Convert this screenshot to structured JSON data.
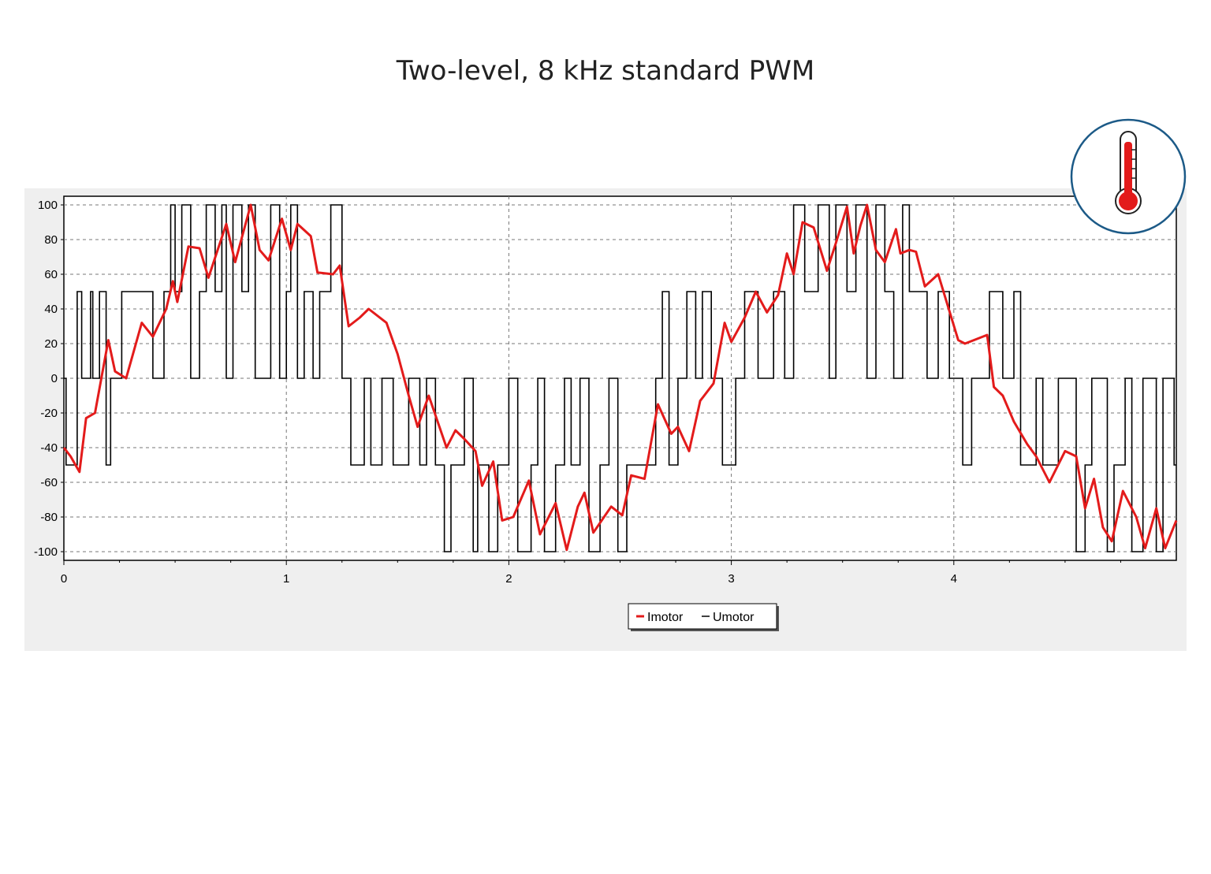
{
  "title": "Two-level, 8 kHz standard PWM",
  "thermometer": {
    "icon": "thermometer-icon",
    "ring_color": "#1c5a87",
    "mercury_color": "#e31b1b"
  },
  "chart_data": {
    "type": "line",
    "title": "Two-level, 8 kHz standard PWM",
    "xlabel": "",
    "ylabel": "",
    "xlim": [
      0,
      5
    ],
    "ylim": [
      -105,
      105
    ],
    "x_ticks": [
      0,
      1,
      2,
      3,
      4
    ],
    "x_tick_labels": [
      "0",
      "1",
      "2",
      "3",
      "4"
    ],
    "y_ticks": [
      100,
      80,
      60,
      40,
      20,
      0,
      -20,
      -40,
      -60,
      -80,
      -100
    ],
    "y_tick_labels": [
      "100",
      "80",
      "60",
      "40",
      "20",
      "0",
      "-20",
      "-40",
      "-60",
      "-80",
      "-100"
    ],
    "grid": true,
    "legend": "bottom-center",
    "series": [
      {
        "name": "Imotor",
        "color": "#e31b1b",
        "style": "line",
        "x": [
          0,
          0.03,
          0.07,
          0.1,
          0.14,
          0.2,
          0.23,
          0.28,
          0.35,
          0.4,
          0.46,
          0.49,
          0.51,
          0.56,
          0.61,
          0.65,
          0.73,
          0.77,
          0.84,
          0.88,
          0.92,
          0.98,
          1.02,
          1.05,
          1.11,
          1.14,
          1.21,
          1.24,
          1.28,
          1.33,
          1.37,
          1.45,
          1.5,
          1.55,
          1.59,
          1.64,
          1.72,
          1.76,
          1.8,
          1.85,
          1.88,
          1.93,
          1.97,
          2.02,
          2.09,
          2.14,
          2.21,
          2.26,
          2.31,
          2.34,
          2.38,
          2.46,
          2.51,
          2.55,
          2.61,
          2.67,
          2.73,
          2.76,
          2.81,
          2.86,
          2.92,
          2.97,
          3.0,
          3.06,
          3.11,
          3.16,
          3.21,
          3.25,
          3.28,
          3.32,
          3.37,
          3.43,
          3.47,
          3.52,
          3.55,
          3.58,
          3.61,
          3.65,
          3.69,
          3.74,
          3.76,
          3.8,
          3.83,
          3.87,
          3.93,
          4.02,
          4.05,
          4.09,
          4.15,
          4.18,
          4.22,
          4.27,
          4.33,
          4.37,
          4.43,
          4.5,
          4.55,
          4.59,
          4.63,
          4.67,
          4.71,
          4.76,
          4.82,
          4.86,
          4.91,
          4.95,
          5.0
        ],
        "y": [
          -40,
          -45,
          -54,
          -23,
          -20,
          22,
          4,
          0,
          32,
          24,
          40,
          56,
          44,
          76,
          75,
          58,
          89,
          67,
          100,
          74,
          68,
          92,
          74,
          89,
          82,
          61,
          60,
          65,
          30,
          35,
          40,
          32,
          14,
          -10,
          -28,
          -10,
          -40,
          -30,
          -35,
          -42,
          -62,
          -48,
          -82,
          -80,
          -59,
          -90,
          -72,
          -99,
          -74,
          -66,
          -89,
          -74,
          -79,
          -56,
          -58,
          -15,
          -32,
          -28,
          -42,
          -13,
          -3,
          32,
          21,
          35,
          50,
          38,
          48,
          72,
          60,
          90,
          87,
          62,
          78,
          99,
          72,
          88,
          100,
          74,
          67,
          86,
          72,
          74,
          73,
          53,
          60,
          22,
          20,
          22,
          25,
          -5,
          -10,
          -25,
          -38,
          -45,
          -60,
          -42,
          -45,
          -75,
          -58,
          -86,
          -94,
          -65,
          -80,
          -98,
          -75,
          -98,
          -82
        ]
      },
      {
        "name": "Umotor",
        "color": "#000000",
        "style": "step",
        "x": [
          0,
          0.01,
          0.06,
          0.08,
          0.12,
          0.13,
          0.16,
          0.19,
          0.21,
          0.23,
          0.26,
          0.28,
          0.36,
          0.4,
          0.45,
          0.48,
          0.5,
          0.53,
          0.57,
          0.61,
          0.64,
          0.68,
          0.71,
          0.73,
          0.76,
          0.8,
          0.83,
          0.86,
          0.93,
          0.97,
          1.0,
          1.02,
          1.05,
          1.08,
          1.12,
          1.15,
          1.17,
          1.2,
          1.25,
          1.29,
          1.35,
          1.38,
          1.43,
          1.48,
          1.55,
          1.6,
          1.63,
          1.67,
          1.71,
          1.74,
          1.8,
          1.84,
          1.86,
          1.91,
          1.95,
          2.0,
          2.04,
          2.1,
          2.13,
          2.16,
          2.21,
          2.25,
          2.28,
          2.32,
          2.36,
          2.41,
          2.45,
          2.49,
          2.53,
          2.58,
          2.62,
          2.66,
          2.69,
          2.72,
          2.76,
          2.8,
          2.84,
          2.87,
          2.91,
          2.96,
          3.02,
          3.06,
          3.12,
          3.19,
          3.24,
          3.28,
          3.33,
          3.39,
          3.44,
          3.47,
          3.52,
          3.56,
          3.61,
          3.65,
          3.69,
          3.73,
          3.77,
          3.8,
          3.84,
          3.88,
          3.93,
          3.98,
          4.04,
          4.08,
          4.16,
          4.22,
          4.27,
          4.3,
          4.37,
          4.4,
          4.47,
          4.55,
          4.59,
          4.62,
          4.69,
          4.72,
          4.77,
          4.8,
          4.85,
          4.91,
          4.94,
          4.99,
          5.0
        ],
        "y": [
          0,
          -50,
          50,
          0,
          50,
          0,
          50,
          -50,
          0,
          0,
          50,
          50,
          50,
          0,
          50,
          100,
          50,
          100,
          0,
          50,
          100,
          50,
          100,
          0,
          100,
          50,
          100,
          0,
          100,
          0,
          50,
          100,
          0,
          50,
          0,
          50,
          50,
          100,
          0,
          -50,
          0,
          -50,
          0,
          -50,
          0,
          -50,
          0,
          -50,
          -100,
          -50,
          0,
          -100,
          -50,
          -100,
          -50,
          0,
          -100,
          -50,
          0,
          -100,
          -50,
          0,
          -50,
          0,
          -100,
          -50,
          0,
          -100,
          -50,
          -50,
          -50,
          0,
          50,
          -50,
          0,
          50,
          0,
          50,
          0,
          -50,
          0,
          50,
          0,
          50,
          0,
          100,
          50,
          100,
          0,
          100,
          50,
          100,
          0,
          100,
          50,
          0,
          100,
          50,
          50,
          0,
          50,
          0,
          -50,
          0,
          50,
          0,
          50,
          -50,
          0,
          -50,
          0,
          -100,
          -50,
          0,
          -100,
          -50,
          0,
          -100,
          0,
          -100,
          0,
          -50,
          -50
        ]
      }
    ]
  }
}
